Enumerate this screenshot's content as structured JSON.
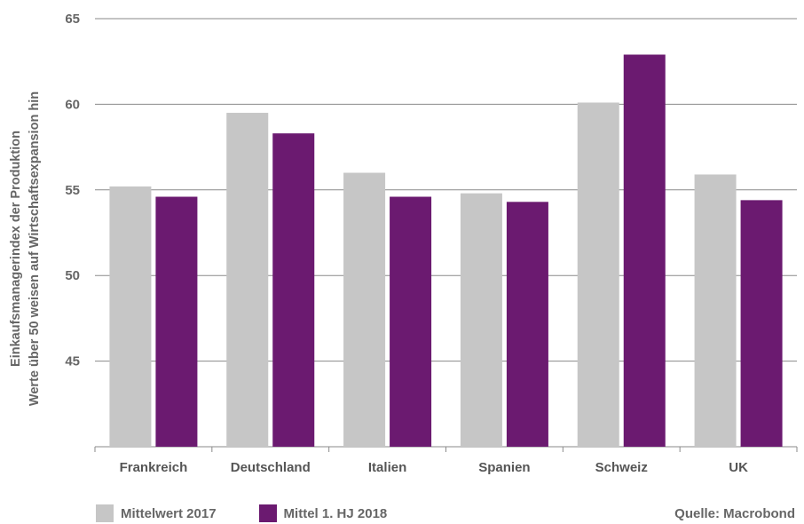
{
  "chart_data": {
    "type": "bar",
    "categories": [
      "Frankreich",
      "Deutschland",
      "Italien",
      "Spanien",
      "Schweiz",
      "UK"
    ],
    "series": [
      {
        "name": "Mittelwert 2017",
        "values": [
          55.2,
          59.5,
          56.0,
          54.8,
          60.1,
          55.9
        ]
      },
      {
        "name": "Mittel 1. HJ 2018",
        "values": [
          54.6,
          58.3,
          54.6,
          54.3,
          62.9,
          54.4
        ]
      }
    ],
    "ylabel_lines": [
      "Einkaufsmanagerindex der Produktion",
      "Werte über 50 weisen auf Wirtschaftsexpansion hin"
    ],
    "ylim": [
      40,
      65
    ],
    "yticks": [
      45,
      50,
      55,
      60,
      65
    ],
    "grid": true,
    "legend_position": "bottom-left",
    "colors": [
      "#c6c6c6",
      "#6b1a70"
    ]
  },
  "source": "Quelle: Macrobond"
}
